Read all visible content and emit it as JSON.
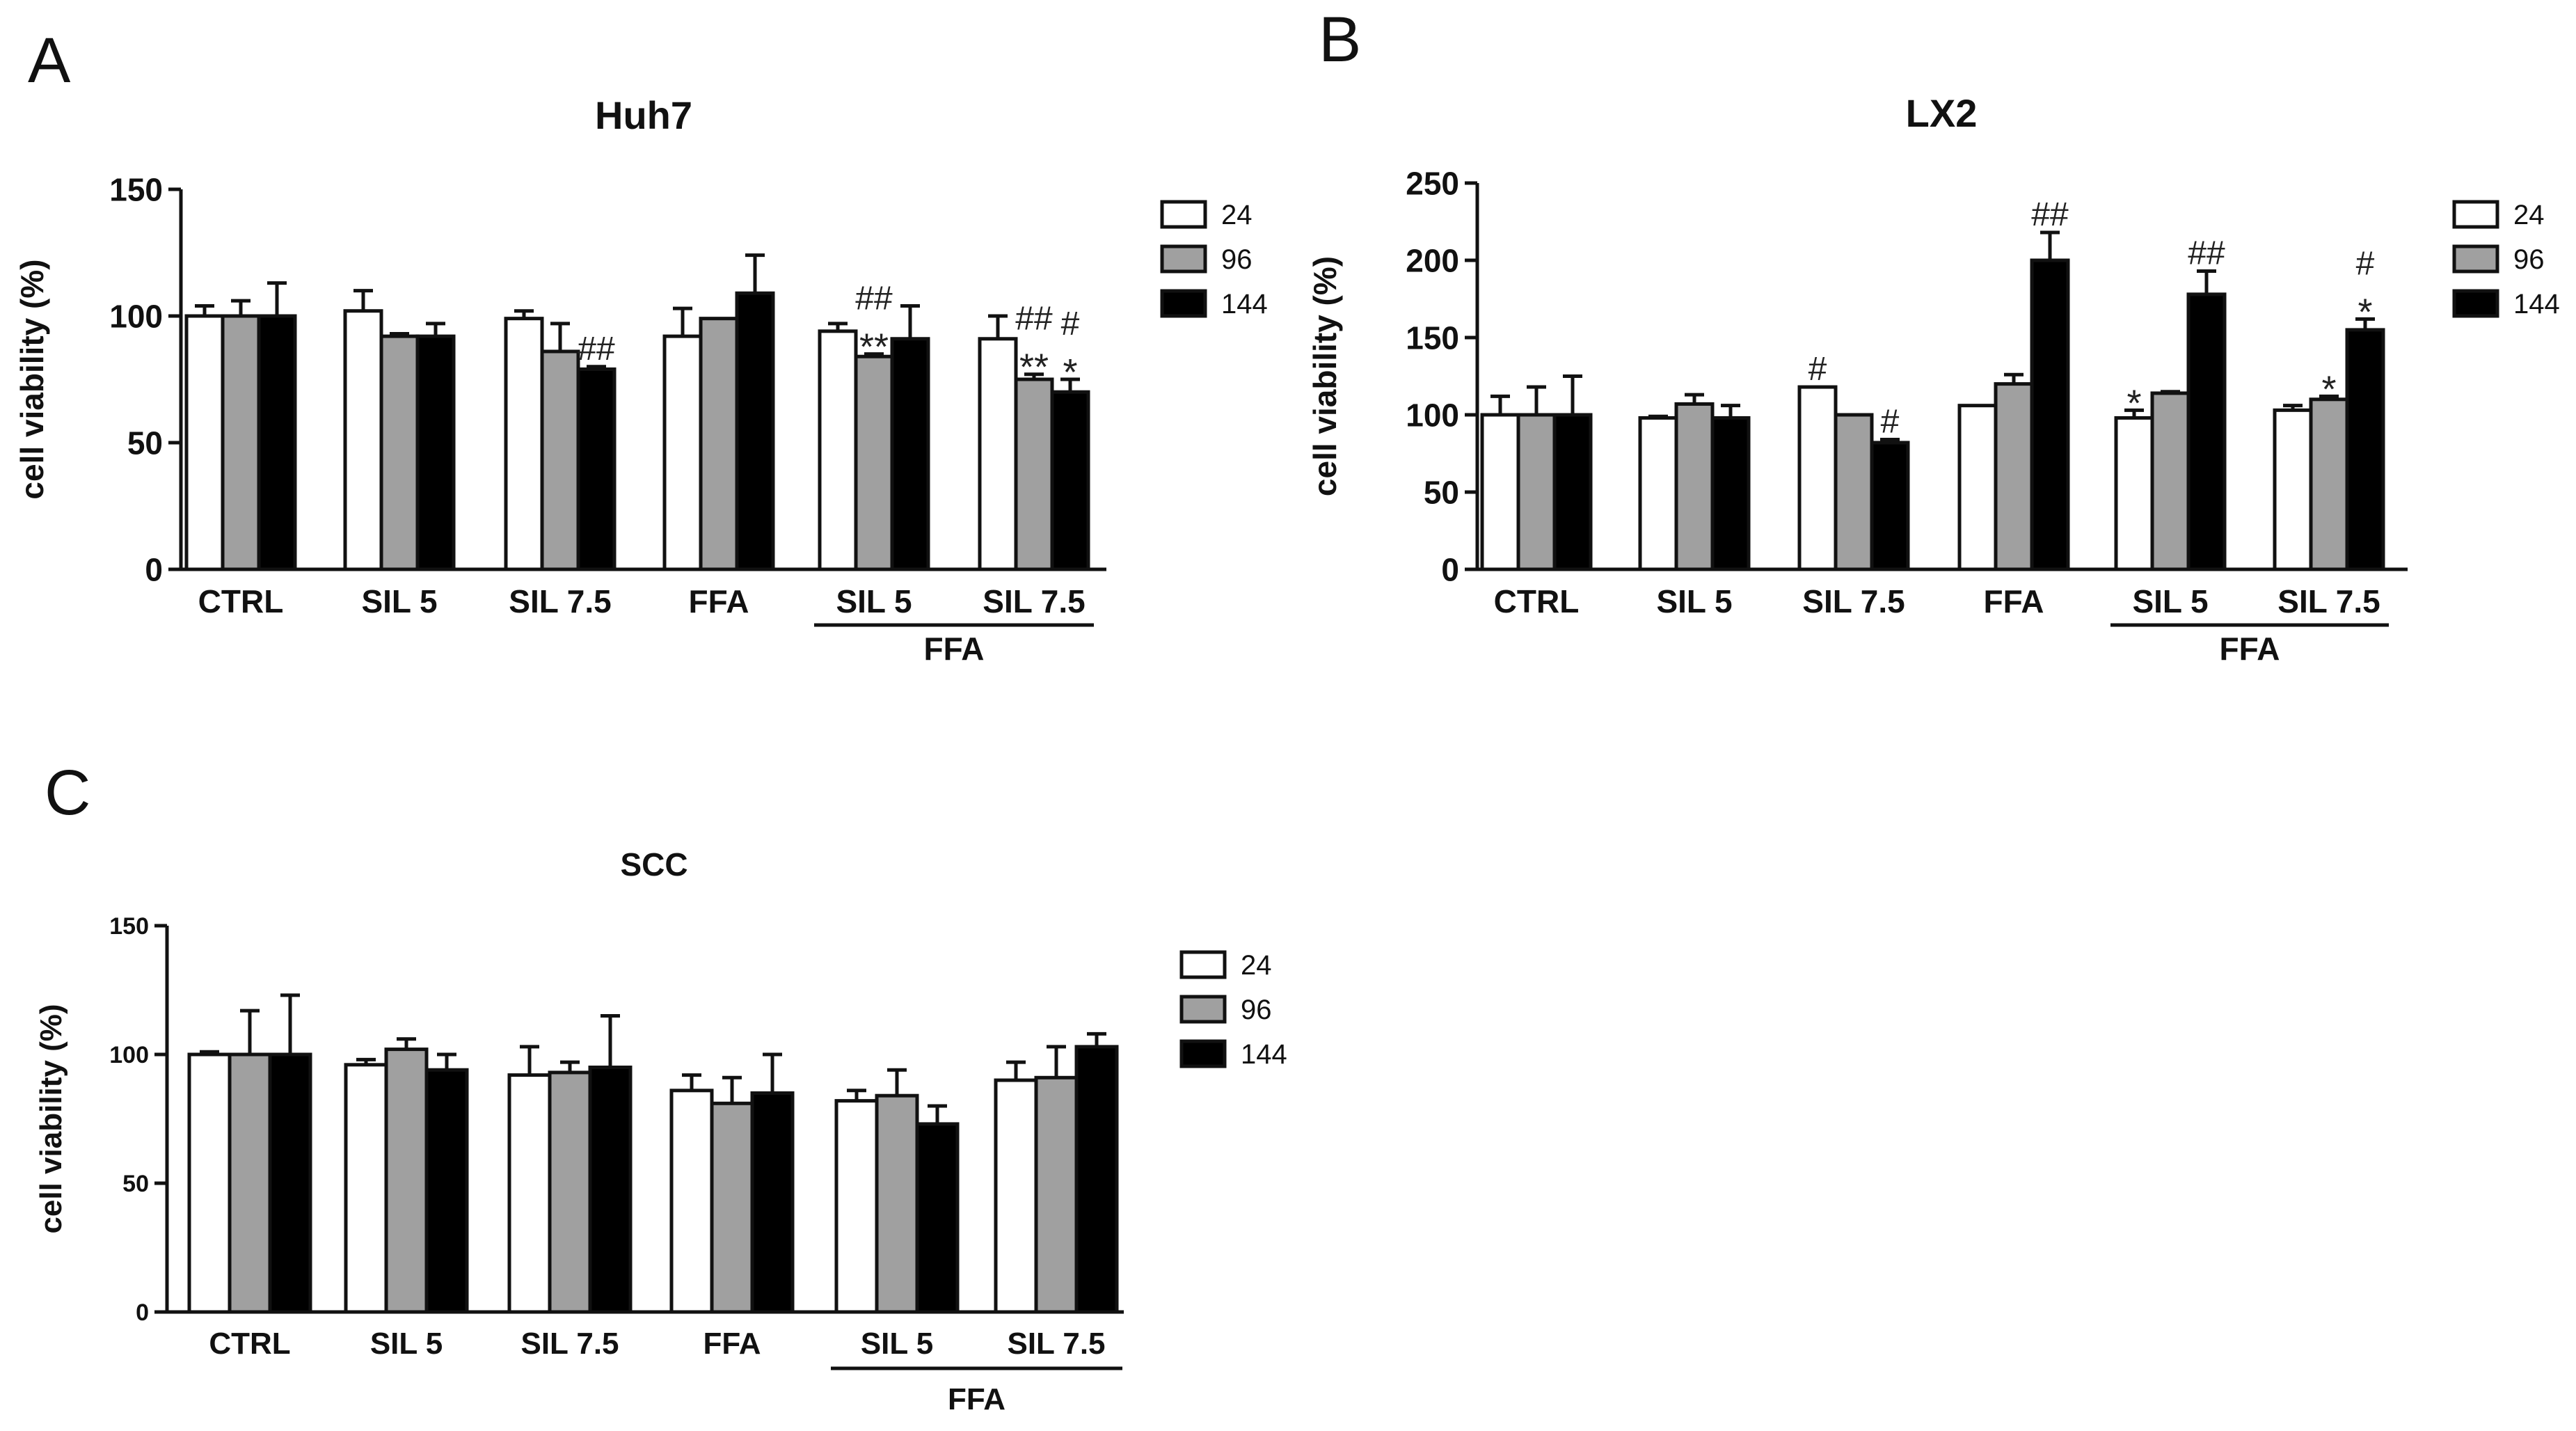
{
  "chart_data": [
    {
      "panel": "A",
      "type": "bar",
      "title": "Huh7",
      "xlabel": "",
      "ylabel": "cell viability (%)",
      "ylim": [
        0,
        150
      ],
      "yticks": [
        "0",
        "50",
        "100",
        "150"
      ],
      "categories": [
        "CTRL",
        "SIL 5",
        "SIL 7.5",
        "FFA",
        "SIL 5",
        "SIL 7.5"
      ],
      "group_bracket": {
        "label": "FFA",
        "categories": [
          4,
          5
        ]
      },
      "legend_position": "top-right",
      "series": [
        {
          "name": "24",
          "color": "#ffffff",
          "values": [
            100,
            102,
            99,
            92,
            94,
            91
          ],
          "errors": [
            4,
            8,
            3,
            11,
            3,
            9
          ]
        },
        {
          "name": "96",
          "color": "#a0a0a0",
          "values": [
            100,
            92,
            86,
            99,
            84,
            75
          ],
          "errors": [
            6,
            1,
            11,
            0,
            1,
            2
          ]
        },
        {
          "name": "144",
          "color": "#000000",
          "values": [
            100,
            92,
            79,
            109,
            91,
            70
          ],
          "errors": [
            13,
            5,
            1,
            15,
            13,
            5
          ]
        }
      ],
      "annotations": [
        {
          "text": "##",
          "category": 2,
          "series": 2
        },
        {
          "text": "##",
          "category": 4,
          "series": 1
        },
        {
          "text": "**",
          "category": 4,
          "series": 1
        },
        {
          "text": "##",
          "category": 5,
          "series": 1
        },
        {
          "text": "**",
          "category": 5,
          "series": 1
        },
        {
          "text": "#",
          "category": 5,
          "series": 2
        },
        {
          "text": "*",
          "category": 5,
          "series": 2
        }
      ]
    },
    {
      "panel": "B",
      "type": "bar",
      "title": "LX2",
      "xlabel": "",
      "ylabel": "cell viability (%)",
      "ylim": [
        0,
        250
      ],
      "yticks": [
        "0",
        "50",
        "100",
        "150",
        "200",
        "250"
      ],
      "categories": [
        "CTRL",
        "SIL 5",
        "SIL 7.5",
        "FFA",
        "SIL 5",
        "SIL 7.5"
      ],
      "group_bracket": {
        "label": "FFA",
        "categories": [
          4,
          5
        ]
      },
      "legend_position": "top-right",
      "series": [
        {
          "name": "24",
          "color": "#ffffff",
          "values": [
            100,
            98,
            118,
            106,
            98,
            103
          ],
          "errors": [
            12,
            1,
            0,
            0,
            5,
            3
          ]
        },
        {
          "name": "96",
          "color": "#a0a0a0",
          "values": [
            100,
            107,
            100,
            120,
            114,
            110
          ],
          "errors": [
            18,
            6,
            0,
            6,
            1,
            2
          ]
        },
        {
          "name": "144",
          "color": "#000000",
          "values": [
            100,
            98,
            82,
            200,
            178,
            155
          ],
          "errors": [
            25,
            8,
            2,
            18,
            15,
            7
          ]
        }
      ],
      "annotations": [
        {
          "text": "#",
          "category": 2,
          "series": 0
        },
        {
          "text": "#",
          "category": 2,
          "series": 2
        },
        {
          "text": "##",
          "category": 3,
          "series": 2
        },
        {
          "text": "*",
          "category": 4,
          "series": 0
        },
        {
          "text": "##",
          "category": 4,
          "series": 2
        },
        {
          "text": "*",
          "category": 5,
          "series": 1
        },
        {
          "text": "#",
          "category": 5,
          "series": 2
        },
        {
          "text": "*",
          "category": 5,
          "series": 2
        }
      ]
    },
    {
      "panel": "C",
      "type": "bar",
      "title": "SCC",
      "xlabel": "",
      "ylabel": "cell viability (%)",
      "ylim": [
        0,
        150
      ],
      "yticks": [
        "0",
        "50",
        "100",
        "150"
      ],
      "categories": [
        "CTRL",
        "SIL 5",
        "SIL 7.5",
        "FFA",
        "SIL 5",
        "SIL 7.5"
      ],
      "group_bracket": {
        "label": "FFA",
        "categories": [
          4,
          5
        ]
      },
      "legend_position": "top-right",
      "series": [
        {
          "name": "24",
          "color": "#ffffff",
          "values": [
            100,
            96,
            92,
            86,
            82,
            90
          ],
          "errors": [
            1,
            2,
            11,
            6,
            4,
            7
          ]
        },
        {
          "name": "96",
          "color": "#a0a0a0",
          "values": [
            100,
            102,
            93,
            81,
            84,
            91
          ],
          "errors": [
            17,
            4,
            4,
            10,
            10,
            12
          ]
        },
        {
          "name": "144",
          "color": "#000000",
          "values": [
            100,
            94,
            95,
            85,
            73,
            103
          ],
          "errors": [
            23,
            6,
            20,
            15,
            7,
            5
          ]
        }
      ],
      "annotations": []
    }
  ]
}
